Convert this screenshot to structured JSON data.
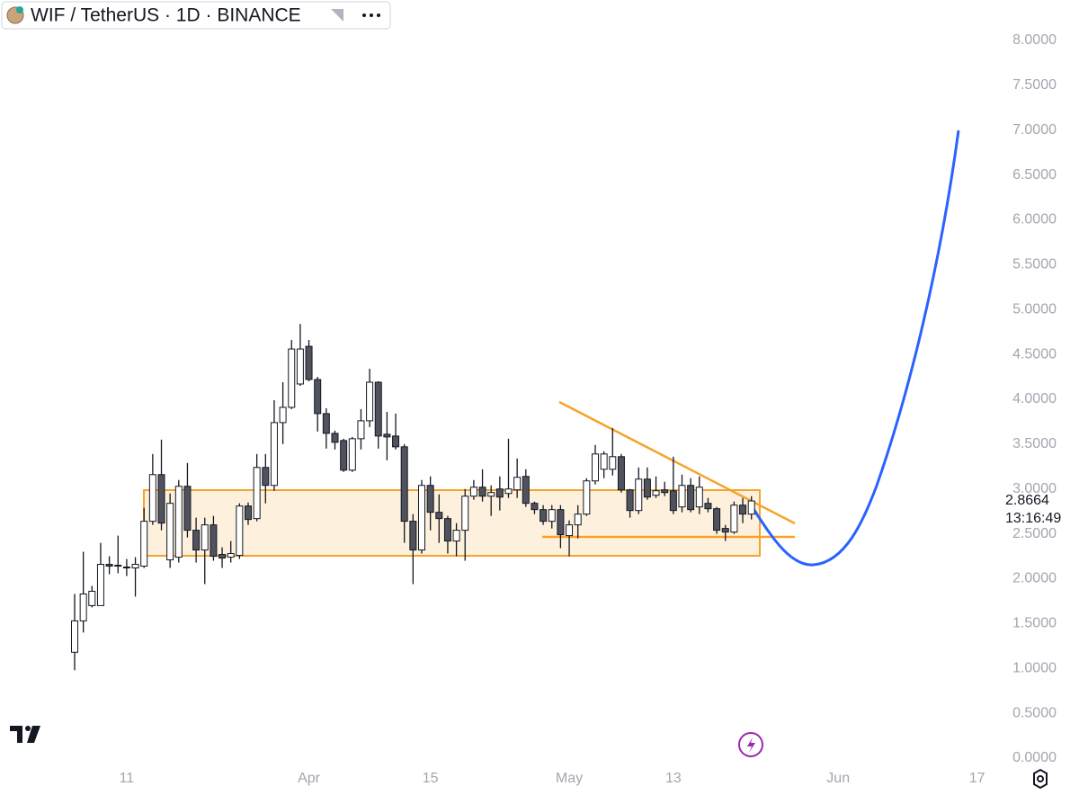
{
  "chart_data": {
    "type": "candlestick",
    "title": "WIF / TetherUS · 1D · BINANCE",
    "price_label": "2.8664",
    "countdown": "13:16:49",
    "categories": [
      null,
      null,
      null,
      null,
      null,
      null,
      "11",
      null,
      null,
      null,
      null,
      null,
      null,
      null,
      null,
      null,
      null,
      null,
      null,
      null,
      null,
      null,
      null,
      null,
      null,
      null,
      null,
      "Apr",
      null,
      null,
      null,
      null,
      null,
      null,
      null,
      null,
      null,
      null,
      null,
      null,
      null,
      "15",
      null,
      null,
      null,
      null,
      null,
      null,
      null,
      null,
      null,
      null,
      null,
      null,
      null,
      null,
      null,
      "May",
      null,
      null,
      null,
      null,
      null,
      null,
      null,
      null,
      null,
      null,
      null,
      "13",
      null,
      null,
      null,
      null,
      null,
      null,
      null,
      null,
      null,
      null,
      null,
      null,
      null,
      null,
      null,
      null,
      null,
      null,
      "Jun",
      null,
      null,
      null,
      null,
      null,
      null,
      null,
      null,
      null,
      null,
      null,
      null,
      null,
      null,
      null,
      "17",
      null
    ],
    "open": [
      1.18,
      1.53,
      1.7,
      1.7,
      2.16,
      2.14,
      2.13,
      2.12,
      2.14,
      2.64,
      3.16,
      2.21,
      2.24,
      3.03,
      2.54,
      2.32,
      2.6,
      2.27,
      2.24,
      2.26,
      2.81,
      2.67,
      3.24,
      3.04,
      3.74,
      3.91,
      4.17,
      4.59,
      4.22,
      3.84,
      3.62,
      3.54,
      3.21,
      3.56,
      3.76,
      4.19,
      3.61,
      3.59,
      3.47,
      2.64,
      2.32,
      3.04,
      2.74,
      2.67,
      2.42,
      2.54,
      2.92,
      3.02,
      2.92,
      3.0,
      2.95,
      2.99,
      3.14,
      2.84,
      2.77,
      2.64,
      2.77,
      2.48,
      2.6,
      2.72,
      3.09,
      3.22,
      3.22,
      3.36,
      2.99,
      2.76,
      3.11,
      2.93,
      2.99,
      2.98,
      2.8,
      3.04,
      2.8,
      2.84,
      2.78,
      2.56,
      2.52,
      2.82,
      2.72,
      null,
      null,
      null,
      null,
      null,
      null,
      null,
      null,
      null,
      null,
      null,
      null,
      null,
      null,
      null,
      null,
      null,
      null,
      null,
      null,
      null,
      null,
      null,
      null,
      null,
      null,
      null
    ],
    "high": [
      1.83,
      2.3,
      1.92,
      2.4,
      2.25,
      2.48,
      2.22,
      2.24,
      2.79,
      3.39,
      3.55,
      2.95,
      3.1,
      3.29,
      2.68,
      2.68,
      2.7,
      2.35,
      2.42,
      2.84,
      2.85,
      3.39,
      3.39,
      3.99,
      4.19,
      4.66,
      4.84,
      4.66,
      4.25,
      3.9,
      3.65,
      3.56,
      3.58,
      3.89,
      4.34,
      4.2,
      3.86,
      3.84,
      3.5,
      2.72,
      3.1,
      3.14,
      2.94,
      2.7,
      2.62,
      3.0,
      3.1,
      3.22,
      3.04,
      3.14,
      3.56,
      3.34,
      3.22,
      2.86,
      2.82,
      2.82,
      2.82,
      2.65,
      2.82,
      3.12,
      3.49,
      3.42,
      3.68,
      3.39,
      3.0,
      3.24,
      3.24,
      3.14,
      3.08,
      3.36,
      3.16,
      3.12,
      3.14,
      2.9,
      2.8,
      2.6,
      2.86,
      2.9,
      2.92,
      null,
      null,
      null,
      null,
      null,
      null,
      null,
      null,
      null,
      null,
      null,
      null,
      null,
      null,
      null,
      null,
      null,
      null,
      null,
      null,
      null,
      null,
      null,
      null,
      null,
      null,
      null
    ],
    "low": [
      0.98,
      1.4,
      1.68,
      1.7,
      2.05,
      2.06,
      2.03,
      1.8,
      2.12,
      2.6,
      2.54,
      2.12,
      2.18,
      2.46,
      2.18,
      1.94,
      2.2,
      2.12,
      2.18,
      2.22,
      2.6,
      2.64,
      2.84,
      2.98,
      3.5,
      3.89,
      4.15,
      4.2,
      3.64,
      3.45,
      3.44,
      3.19,
      3.19,
      3.44,
      3.69,
      3.45,
      3.32,
      3.44,
      2.4,
      1.94,
      2.28,
      2.54,
      2.4,
      2.28,
      2.25,
      2.2,
      2.88,
      2.86,
      2.7,
      2.76,
      2.9,
      2.9,
      2.8,
      2.72,
      2.6,
      2.56,
      2.34,
      2.25,
      2.45,
      2.7,
      3.05,
      3.12,
      3.15,
      2.96,
      2.68,
      2.72,
      2.88,
      2.9,
      2.92,
      2.72,
      2.74,
      2.74,
      2.72,
      2.74,
      2.5,
      2.42,
      2.5,
      2.62,
      2.66,
      null,
      null,
      null,
      null,
      null,
      null,
      null,
      null,
      null,
      null,
      null,
      null,
      null,
      null,
      null,
      null,
      null,
      null,
      null,
      null,
      null,
      null,
      null,
      null,
      null,
      null,
      null
    ],
    "close": [
      1.53,
      1.83,
      1.86,
      2.16,
      2.14,
      2.15,
      2.12,
      2.16,
      2.64,
      3.16,
      2.62,
      2.84,
      3.03,
      2.54,
      2.32,
      2.6,
      2.25,
      2.23,
      2.28,
      2.81,
      2.66,
      3.24,
      3.04,
      3.74,
      3.91,
      4.56,
      4.56,
      4.22,
      3.84,
      3.62,
      3.52,
      3.21,
      3.56,
      3.76,
      4.19,
      3.59,
      3.58,
      3.47,
      2.64,
      2.32,
      3.04,
      2.74,
      2.67,
      2.42,
      2.54,
      2.92,
      3.02,
      2.92,
      2.96,
      2.91,
      3.0,
      3.13,
      2.84,
      2.77,
      2.64,
      2.77,
      2.49,
      2.6,
      2.72,
      3.09,
      3.39,
      3.39,
      3.36,
      2.99,
      2.76,
      3.11,
      2.91,
      2.98,
      2.96,
      2.76,
      3.04,
      2.77,
      3.02,
      2.78,
      2.54,
      2.52,
      2.82,
      2.72,
      2.8664,
      null,
      null,
      null,
      null,
      null,
      null,
      null,
      null,
      null,
      null,
      null,
      null,
      null,
      null,
      null,
      null,
      null,
      null,
      null,
      null,
      null,
      null,
      null,
      null,
      null,
      null,
      null
    ],
    "ylim": [
      -0.07,
      8.45
    ],
    "yticks": [
      {
        "value": 0,
        "label": "0.0000"
      },
      {
        "value": 0.5,
        "label": "0.5000"
      },
      {
        "value": 1,
        "label": "1.0000"
      },
      {
        "value": 1.5,
        "label": "1.5000"
      },
      {
        "value": 2,
        "label": "2.0000"
      },
      {
        "value": 2.5,
        "label": "2.5000"
      },
      {
        "value": 3,
        "label": "3.0000"
      },
      {
        "value": 3.5,
        "label": "3.5000"
      },
      {
        "value": 4,
        "label": "4.0000"
      },
      {
        "value": 4.5,
        "label": "4.5000"
      },
      {
        "value": 5,
        "label": "5.0000"
      },
      {
        "value": 5.5,
        "label": "5.5000"
      },
      {
        "value": 6,
        "label": "6.0000"
      },
      {
        "value": 6.5,
        "label": "6.5000"
      },
      {
        "value": 7,
        "label": "7.0000"
      },
      {
        "value": 7.5,
        "label": "7.5000"
      },
      {
        "value": 8,
        "label": "8.0000"
      }
    ],
    "up_color": "#ffffff",
    "down_color": "#50535e",
    "outline_color": "#131722"
  }
}
